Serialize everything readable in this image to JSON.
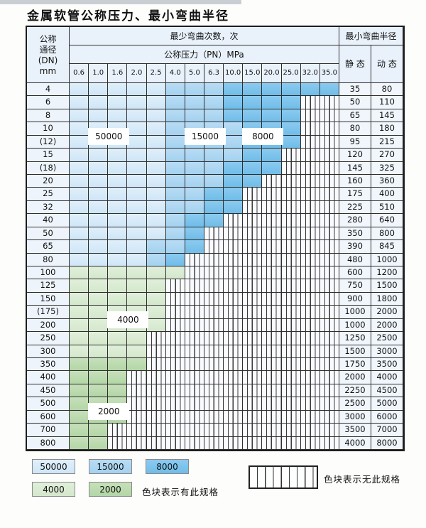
{
  "title": "金属软管公称压力、最小弯曲半径",
  "colors": {
    "blue_50000": "#cfe6f7",
    "blue_15000": "#a3d2f0",
    "blue_8000": "#6fbde9",
    "green_4000": "#d4e8cc",
    "green_2000": "#b3d6a6",
    "grid_line": "#2e2e2e",
    "header_bg": "#e9f2fb"
  },
  "table": {
    "dn_header_lines": [
      "公称",
      "通径",
      "(DN)",
      "mm"
    ],
    "cycles_header": "最少弯曲次数，次",
    "pressure_header": "公称压力（PN）MPa",
    "radius_header": "最小弯曲半径",
    "static_header": "静 态",
    "dynamic_header": "动 态",
    "pressures": [
      "0.6",
      "1.0",
      "1.6",
      "2.0",
      "2.5",
      "4.0",
      "5.0",
      "6.3",
      "10.0",
      "15.0",
      "20.0",
      "25.0",
      "32.0",
      "35.0"
    ],
    "cell_legend": {
      "L": "50000",
      "M": "15000",
      "D": "8000",
      "G": "4000",
      "g": "2000",
      "X": "no-spec"
    },
    "rows": [
      {
        "dn": "4",
        "cells": "LLLLLMMMDDDDDD",
        "static": "35",
        "dynamic": "80"
      },
      {
        "dn": "6",
        "cells": "LLLLLMMMDDDDXX",
        "static": "50",
        "dynamic": "110"
      },
      {
        "dn": "8",
        "cells": "LLLLLMMMDDDDXX",
        "static": "65",
        "dynamic": "145"
      },
      {
        "dn": "10",
        "cells": "LLLLLMMMMDDDXX",
        "static": "80",
        "dynamic": "180"
      },
      {
        "dn": "(12)",
        "cells": "LLLLLMMMMDDDXX",
        "static": "95",
        "dynamic": "215"
      },
      {
        "dn": "15",
        "cells": "LLLLLMMMMDDXXX",
        "static": "120",
        "dynamic": "270"
      },
      {
        "dn": "(18)",
        "cells": "LLLLLMMMDDDXXX",
        "static": "145",
        "dynamic": "325"
      },
      {
        "dn": "20",
        "cells": "LLLLLMMMDDXXXX",
        "static": "160",
        "dynamic": "360"
      },
      {
        "dn": "25",
        "cells": "LLLLLMMDDXXXXX",
        "static": "175",
        "dynamic": "400"
      },
      {
        "dn": "32",
        "cells": "LLLLLMMDDXXXXX",
        "static": "225",
        "dynamic": "510"
      },
      {
        "dn": "40",
        "cells": "LLLLLMDDXXXXXX",
        "static": "280",
        "dynamic": "640"
      },
      {
        "dn": "50",
        "cells": "LLLLLMDXXXXXXX",
        "static": "350",
        "dynamic": "800"
      },
      {
        "dn": "65",
        "cells": "LLLLMMDXXXXXXX",
        "static": "390",
        "dynamic": "845"
      },
      {
        "dn": "80",
        "cells": "LLLLMDXXXXXXXX",
        "static": "480",
        "dynamic": "1000"
      },
      {
        "dn": "100",
        "cells": "GGGGGGXXXXXXXX",
        "static": "600",
        "dynamic": "1200"
      },
      {
        "dn": "125",
        "cells": "GGGGGXXXXXXXXX",
        "static": "750",
        "dynamic": "1500"
      },
      {
        "dn": "150",
        "cells": "GGGGGXXXXXXXXX",
        "static": "900",
        "dynamic": "1800"
      },
      {
        "dn": "(175)",
        "cells": "GGGGGXXXXXXXXX",
        "static": "1000",
        "dynamic": "2000"
      },
      {
        "dn": "200",
        "cells": "GGGGGXXXXXXXXX",
        "static": "1000",
        "dynamic": "2000"
      },
      {
        "dn": "250",
        "cells": "GGGGXXXXXXXXXX",
        "static": "1250",
        "dynamic": "2500"
      },
      {
        "dn": "300",
        "cells": "GGGGXXXXXXXXXX",
        "static": "1500",
        "dynamic": "3000"
      },
      {
        "dn": "350",
        "cells": "ggggXXXXXXXXXX",
        "static": "1750",
        "dynamic": "3500"
      },
      {
        "dn": "400",
        "cells": "gggXXXXXXXXXXX",
        "static": "2000",
        "dynamic": "4000"
      },
      {
        "dn": "450",
        "cells": "gggXXXXXXXXXXX",
        "static": "2250",
        "dynamic": "4500"
      },
      {
        "dn": "500",
        "cells": "gggXXXXXXXXXXX",
        "static": "2500",
        "dynamic": "5000"
      },
      {
        "dn": "600",
        "cells": "gggXXXXXXXXXXX",
        "static": "3000",
        "dynamic": "6000"
      },
      {
        "dn": "700",
        "cells": "ggXXXXXXXXXXXX",
        "static": "3500",
        "dynamic": "7000"
      },
      {
        "dn": "800",
        "cells": "ggXXXXXXXXXXXX",
        "static": "4000",
        "dynamic": "8000"
      }
    ],
    "band_labels": [
      {
        "text": "50000",
        "col_start": 1,
        "col_span": 2,
        "row_start": 3,
        "row_span": 2
      },
      {
        "text": "15000",
        "col_start": 6,
        "col_span": 2,
        "row_start": 3,
        "row_span": 2
      },
      {
        "text": "8000",
        "col_start": 9,
        "col_span": 2,
        "row_start": 3,
        "row_span": 2
      },
      {
        "text": "4000",
        "col_start": 2,
        "col_span": 2,
        "row_start": 17,
        "row_span": 2
      },
      {
        "text": "2000",
        "col_start": 1,
        "col_span": 2,
        "row_start": 24,
        "row_span": 2
      }
    ]
  },
  "legend": {
    "items": [
      {
        "value": "50000",
        "color_class": "cL"
      },
      {
        "value": "15000",
        "color_class": "cM"
      },
      {
        "value": "8000",
        "color_class": "cD"
      },
      {
        "value": "4000",
        "color_class": "cG"
      },
      {
        "value": "2000",
        "color_class": "cg"
      }
    ],
    "available_label": "色块表示有此规格",
    "unavailable_label": "色块表示无此规格"
  }
}
